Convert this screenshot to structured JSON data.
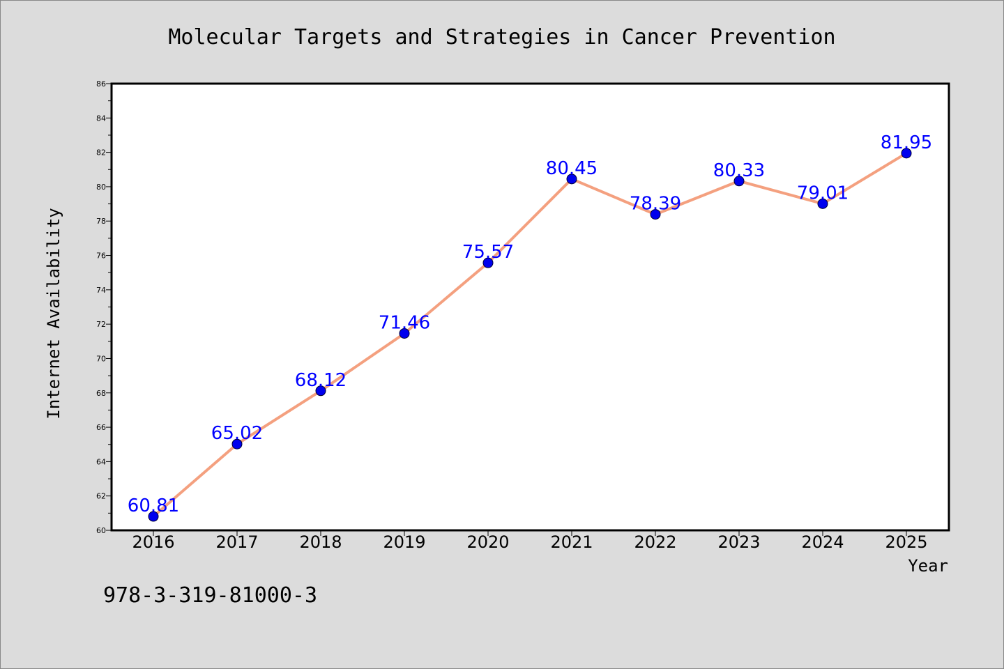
{
  "chart_data": {
    "type": "line",
    "title": "Molecular Targets and Strategies in Cancer Prevention",
    "xlabel": "Year",
    "ylabel": "Internet Availability",
    "categories": [
      "2016",
      "2017",
      "2018",
      "2019",
      "2020",
      "2021",
      "2022",
      "2023",
      "2024",
      "2025"
    ],
    "values": [
      60.81,
      65.02,
      68.12,
      71.46,
      75.57,
      80.45,
      78.39,
      80.33,
      79.01,
      81.95
    ],
    "data_labels": [
      "60.81",
      "65.02",
      "68.12",
      "71.46",
      "75.57",
      "80.45",
      "78.39",
      "80.33",
      "79.01",
      "81.95"
    ],
    "ylim": [
      60,
      86
    ],
    "yticks": [
      "60",
      "62",
      "64",
      "66",
      "68",
      "70",
      "72",
      "74",
      "76",
      "78",
      "80",
      "82",
      "84",
      "86"
    ],
    "grid": false,
    "legend": false,
    "colors": {
      "line": "#f4a07f",
      "marker": "#0000ee",
      "data_label": "#0000ff",
      "background": "#dcdcdc",
      "plot_background": "#ffffff"
    }
  },
  "footer_text": "978-3-319-81000-3"
}
